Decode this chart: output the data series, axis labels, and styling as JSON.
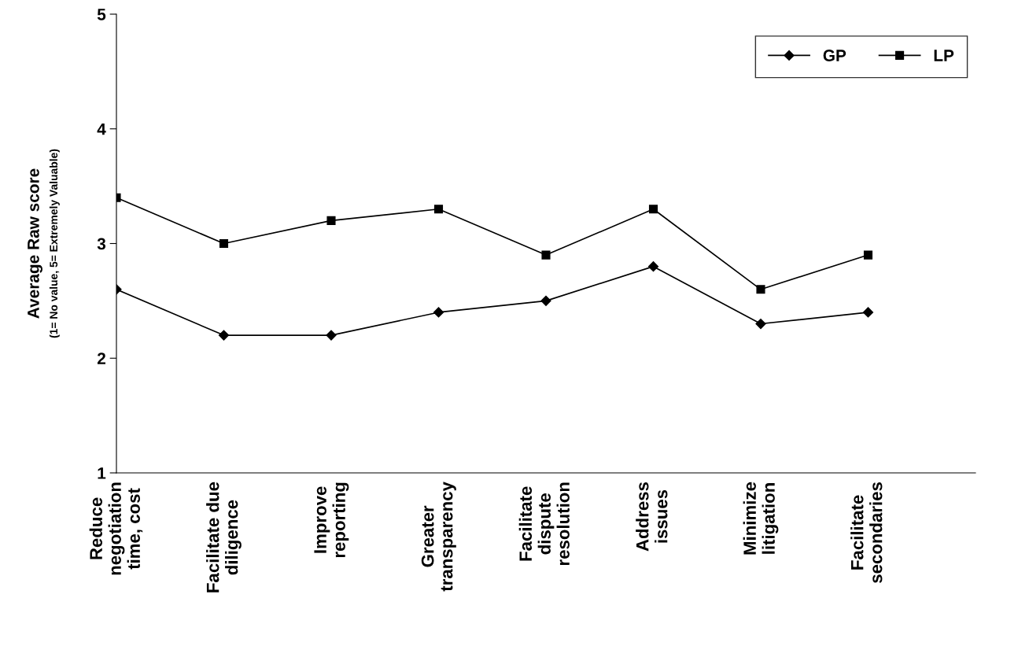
{
  "chart_data": {
    "type": "line",
    "ylabel": "Average Raw score\n(1= No value, 5= Extremely Valuable)",
    "categories": [
      "Reduce\nnegotiation\ntime, cost",
      "Facilitate due\ndiligence",
      "Improve\nreporting",
      "Greater\ntransparency",
      "Facilitate\ndispute\nresolution",
      "Address\nissues",
      "Minimize\nlitigation",
      "Facilitate\nsecondaries"
    ],
    "series": [
      {
        "name": "GP",
        "color": "#000000",
        "marker": "diamond",
        "values": [
          2.6,
          2.2,
          2.2,
          2.4,
          2.5,
          2.8,
          2.3,
          2.4
        ]
      },
      {
        "name": "LP",
        "color": "#000000",
        "marker": "square",
        "values": [
          3.4,
          3.0,
          3.2,
          3.3,
          2.9,
          3.3,
          2.6,
          2.9
        ]
      }
    ],
    "ylim": [
      1,
      5
    ],
    "yticks": [
      1,
      2,
      3,
      4,
      5
    ],
    "grid": false,
    "legend": "top right",
    "line_style": "solid"
  }
}
